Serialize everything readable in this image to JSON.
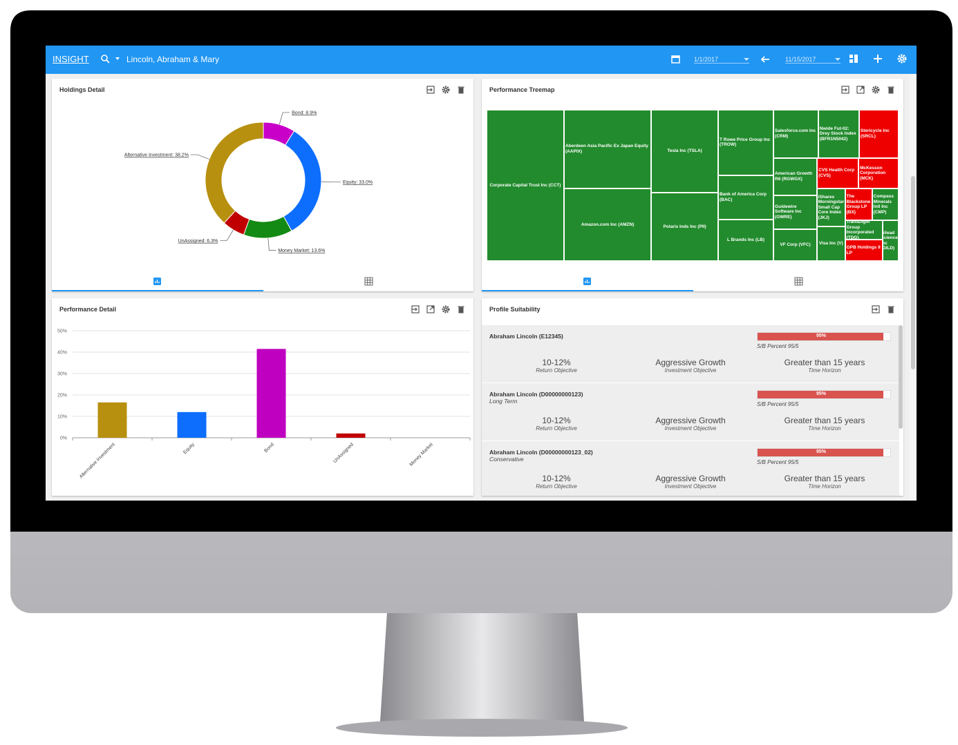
{
  "header": {
    "title": "INSIGHT",
    "client": "Lincoln, Abraham & Mary",
    "start_date": "1/1/2017",
    "end_date": "11/15/2017"
  },
  "chart_data": [
    {
      "type": "pie",
      "title": "Holdings Detail",
      "values": [
        8.9,
        33.0,
        13.6,
        6.3,
        38.2
      ],
      "value_labels": [
        "Bond: 8.9%",
        "Equity: 33.0%",
        "Money Market: 13.6%",
        "UnAssigned: 6.3%",
        "Alternative Investment: 38.2%"
      ],
      "colors": [
        "#c800c8",
        "#0d6efd",
        "#138a13",
        "#c00000",
        "#b8900f"
      ]
    },
    {
      "type": "treemap",
      "title": "Performance Treemap",
      "labels": [
        "Corporate Capital Trust Inc (CCT)",
        "Aberdeen Asia Pacific Ex Japan Equity (AAPIX)",
        "Amazon.com Inc (AMZN)",
        "Tesla Inc (TSLA)",
        "Polaris Inds Inc (PII)",
        "T Rowe Price Group Inc (TROW)",
        "Bank of America Corp (BAC)",
        "L Brands Inc (LB)",
        "Salesforce.com Inc (CRM)",
        "Nwide Fut-02: Drey Stock Index (BFR1N5042)",
        "Stericycle Inc (SRCL)",
        "American Growth R6 (RGWGX)",
        "Guidewire Software Inc (GWRE)",
        "VF Corp (VFC)",
        "CVS Health Corp (CVS)",
        "McKesson Corporation (MCK)",
        "iShares Morningstar Small Cap Core Index (JKJ)",
        "Visa Inc (V)",
        "The Blackstone Group LP (BX)",
        "Compass Minerals Intl Inc (CMP)",
        "TransDigm Group Incorporated (TDG)",
        "GPB Holdings II LP",
        "Gilead Sciences Inc (GILD)"
      ],
      "values": [
        22152,
        12994,
        12012,
        10512,
        8614,
        6844,
        4680,
        4320,
        4080,
        3712,
        3596,
        3072,
        2800,
        2640,
        2400,
        2320,
        2000,
        1840,
        1632,
        1600,
        1380,
        1500,
        1232
      ],
      "colors": [
        "#228b2d",
        "#228b2d",
        "#228b2d",
        "#228b2d",
        "#228b2d",
        "#228b2d",
        "#228b2d",
        "#228b2d",
        "#228b2d",
        "#228b2d",
        "#ee0000",
        "#228b2d",
        "#228b2d",
        "#228b2d",
        "#ee0000",
        "#ee0000",
        "#228b2d",
        "#228b2d",
        "#ee0000",
        "#228b2d",
        "#228b2d",
        "#ee0000",
        "#228b2d"
      ]
    },
    {
      "type": "bar",
      "title": "Performance Detail",
      "categories": [
        "Alternative Investment",
        "Equity",
        "Bond",
        "UnAssigned",
        "Money Market"
      ],
      "values": [
        16.5,
        12,
        41.5,
        2,
        0
      ],
      "colors": [
        "#b8900f",
        "#0d6efd",
        "#c000c0",
        "#c00000",
        "#138a13"
      ],
      "ylim": [
        0,
        50
      ],
      "yticks": [
        {
          "value": 0,
          "label": "0%"
        },
        {
          "value": 10,
          "label": "10%"
        },
        {
          "value": 20,
          "label": "20%"
        },
        {
          "value": 30,
          "label": "30%"
        },
        {
          "value": 40,
          "label": "40%"
        },
        {
          "value": 50,
          "label": "50%"
        }
      ],
      "grid": true
    }
  ],
  "suitability": {
    "title": "Profile Suitability",
    "score_range": [
      0,
      100
    ],
    "entries": [
      {
        "name": "Abraham Lincoln (E12345)",
        "score": 95,
        "score_label": "95%",
        "score_note": "S/B Percent 95/5",
        "metrics": [
          {
            "value": "10-12%",
            "label": "Return Objective"
          },
          {
            "value": "Aggressive Growth",
            "label": "Investment Objective"
          },
          {
            "value": "Greater than 15 years",
            "label": "Time Horizon"
          }
        ]
      },
      {
        "name": "Abraham Lincoln (D00000000123)",
        "subtitle": "Long Term",
        "score": 95,
        "score_label": "95%",
        "score_note": "S/B Percent 95/5",
        "metrics": [
          {
            "value": "10-12%",
            "label": "Return Objective"
          },
          {
            "value": "Aggressive Growth",
            "label": "Investment Objective"
          },
          {
            "value": "Greater than 15 years",
            "label": "Time Horizon"
          }
        ]
      },
      {
        "name": "Abraham Lincoln (D00000000123_02)",
        "subtitle": "Conservative",
        "score": 95,
        "score_label": "95%",
        "score_note": "S/B Percent 95/5",
        "metrics": [
          {
            "value": "10-12%",
            "label": "Return Objective"
          },
          {
            "value": "Aggressive Growth",
            "label": "Investment Objective"
          },
          {
            "value": "Greater than 15 years",
            "label": "Time Horizon"
          }
        ]
      }
    ]
  }
}
